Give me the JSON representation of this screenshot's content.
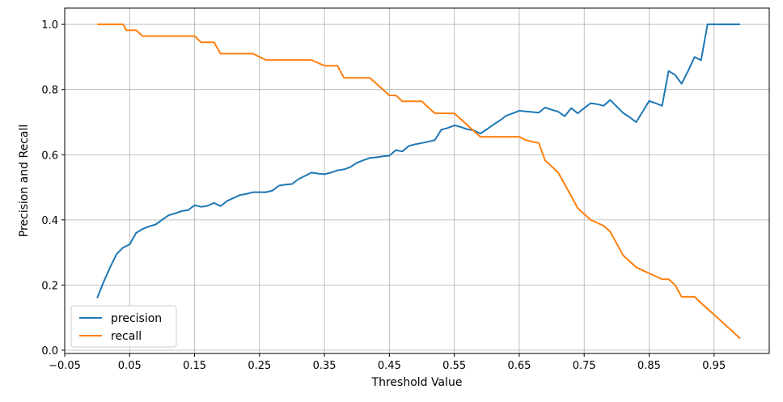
{
  "chart_data": {
    "type": "line",
    "title": "",
    "xlabel": "Threshold Value",
    "ylabel": "Precision and Recall",
    "xlim": [
      -0.05,
      1.035
    ],
    "ylim": [
      -0.01,
      1.05
    ],
    "xticks": [
      -0.05,
      0.05,
      0.15,
      0.25,
      0.35,
      0.45,
      0.55,
      0.65,
      0.75,
      0.85,
      0.95
    ],
    "xtick_labels": [
      "−0.05",
      "0.05",
      "0.15",
      "0.25",
      "0.35",
      "0.45",
      "0.55",
      "0.65",
      "0.75",
      "0.85",
      "0.95"
    ],
    "yticks": [
      0.0,
      0.2,
      0.4,
      0.6,
      0.8,
      1.0
    ],
    "ytick_labels": [
      "0.0",
      "0.2",
      "0.4",
      "0.6",
      "0.8",
      "1.0"
    ],
    "grid": true,
    "legend_position": "lower-left",
    "series": [
      {
        "name": "precision",
        "color": "#1f77b4",
        "points": [
          [
            0.0,
            0.16
          ],
          [
            0.01,
            0.21
          ],
          [
            0.02,
            0.255
          ],
          [
            0.03,
            0.295
          ],
          [
            0.04,
            0.315
          ],
          [
            0.05,
            0.325
          ],
          [
            0.06,
            0.36
          ],
          [
            0.07,
            0.372
          ],
          [
            0.08,
            0.38
          ],
          [
            0.09,
            0.386
          ],
          [
            0.1,
            0.4
          ],
          [
            0.11,
            0.414
          ],
          [
            0.12,
            0.42
          ],
          [
            0.13,
            0.427
          ],
          [
            0.14,
            0.43
          ],
          [
            0.15,
            0.445
          ],
          [
            0.16,
            0.44
          ],
          [
            0.17,
            0.443
          ],
          [
            0.18,
            0.452
          ],
          [
            0.19,
            0.442
          ],
          [
            0.2,
            0.458
          ],
          [
            0.21,
            0.467
          ],
          [
            0.22,
            0.476
          ],
          [
            0.23,
            0.48
          ],
          [
            0.24,
            0.485
          ],
          [
            0.25,
            0.485
          ],
          [
            0.26,
            0.485
          ],
          [
            0.27,
            0.49
          ],
          [
            0.28,
            0.505
          ],
          [
            0.29,
            0.508
          ],
          [
            0.3,
            0.51
          ],
          [
            0.31,
            0.525
          ],
          [
            0.32,
            0.535
          ],
          [
            0.33,
            0.545
          ],
          [
            0.34,
            0.542
          ],
          [
            0.35,
            0.54
          ],
          [
            0.36,
            0.545
          ],
          [
            0.37,
            0.552
          ],
          [
            0.38,
            0.555
          ],
          [
            0.39,
            0.562
          ],
          [
            0.4,
            0.575
          ],
          [
            0.41,
            0.583
          ],
          [
            0.42,
            0.59
          ],
          [
            0.43,
            0.592
          ],
          [
            0.44,
            0.595
          ],
          [
            0.45,
            0.597
          ],
          [
            0.46,
            0.614
          ],
          [
            0.47,
            0.61
          ],
          [
            0.48,
            0.627
          ],
          [
            0.49,
            0.632
          ],
          [
            0.5,
            0.636
          ],
          [
            0.51,
            0.64
          ],
          [
            0.52,
            0.645
          ],
          [
            0.53,
            0.677
          ],
          [
            0.54,
            0.682
          ],
          [
            0.55,
            0.69
          ],
          [
            0.56,
            0.685
          ],
          [
            0.57,
            0.678
          ],
          [
            0.58,
            0.675
          ],
          [
            0.59,
            0.665
          ],
          [
            0.6,
            0.678
          ],
          [
            0.61,
            0.692
          ],
          [
            0.62,
            0.705
          ],
          [
            0.63,
            0.72
          ],
          [
            0.64,
            0.727
          ],
          [
            0.65,
            0.735
          ],
          [
            0.66,
            0.733
          ],
          [
            0.67,
            0.731
          ],
          [
            0.68,
            0.729
          ],
          [
            0.69,
            0.745
          ],
          [
            0.7,
            0.738
          ],
          [
            0.71,
            0.732
          ],
          [
            0.72,
            0.718
          ],
          [
            0.73,
            0.743
          ],
          [
            0.74,
            0.727
          ],
          [
            0.75,
            0.743
          ],
          [
            0.76,
            0.758
          ],
          [
            0.77,
            0.755
          ],
          [
            0.78,
            0.75
          ],
          [
            0.79,
            0.768
          ],
          [
            0.8,
            0.748
          ],
          [
            0.81,
            0.728
          ],
          [
            0.82,
            0.715
          ],
          [
            0.83,
            0.7
          ],
          [
            0.84,
            0.732
          ],
          [
            0.85,
            0.765
          ],
          [
            0.86,
            0.758
          ],
          [
            0.87,
            0.75
          ],
          [
            0.88,
            0.857
          ],
          [
            0.89,
            0.845
          ],
          [
            0.9,
            0.818
          ],
          [
            0.91,
            0.857
          ],
          [
            0.92,
            0.9
          ],
          [
            0.93,
            0.89
          ],
          [
            0.94,
            1.0
          ],
          [
            0.95,
            1.0
          ],
          [
            0.96,
            1.0
          ],
          [
            0.97,
            1.0
          ],
          [
            0.98,
            1.0
          ],
          [
            0.99,
            1.0
          ]
        ]
      },
      {
        "name": "recall",
        "color": "#ff7f0e",
        "points": [
          [
            0.0,
            1.0
          ],
          [
            0.01,
            1.0
          ],
          [
            0.02,
            1.0
          ],
          [
            0.03,
            1.0
          ],
          [
            0.04,
            1.0
          ],
          [
            0.045,
            0.982
          ],
          [
            0.06,
            0.982
          ],
          [
            0.07,
            0.964
          ],
          [
            0.08,
            0.964
          ],
          [
            0.09,
            0.964
          ],
          [
            0.1,
            0.964
          ],
          [
            0.11,
            0.964
          ],
          [
            0.12,
            0.964
          ],
          [
            0.13,
            0.964
          ],
          [
            0.14,
            0.964
          ],
          [
            0.15,
            0.964
          ],
          [
            0.16,
            0.945
          ],
          [
            0.17,
            0.945
          ],
          [
            0.18,
            0.945
          ],
          [
            0.19,
            0.91
          ],
          [
            0.2,
            0.91
          ],
          [
            0.21,
            0.91
          ],
          [
            0.22,
            0.91
          ],
          [
            0.23,
            0.91
          ],
          [
            0.24,
            0.91
          ],
          [
            0.25,
            0.9
          ],
          [
            0.26,
            0.891
          ],
          [
            0.27,
            0.891
          ],
          [
            0.28,
            0.891
          ],
          [
            0.29,
            0.891
          ],
          [
            0.3,
            0.891
          ],
          [
            0.31,
            0.891
          ],
          [
            0.32,
            0.891
          ],
          [
            0.33,
            0.891
          ],
          [
            0.34,
            0.882
          ],
          [
            0.35,
            0.873
          ],
          [
            0.36,
            0.873
          ],
          [
            0.37,
            0.873
          ],
          [
            0.38,
            0.836
          ],
          [
            0.39,
            0.836
          ],
          [
            0.4,
            0.836
          ],
          [
            0.41,
            0.836
          ],
          [
            0.42,
            0.836
          ],
          [
            0.43,
            0.818
          ],
          [
            0.44,
            0.8
          ],
          [
            0.45,
            0.782
          ],
          [
            0.46,
            0.782
          ],
          [
            0.47,
            0.764
          ],
          [
            0.48,
            0.764
          ],
          [
            0.49,
            0.764
          ],
          [
            0.5,
            0.764
          ],
          [
            0.51,
            0.745
          ],
          [
            0.52,
            0.727
          ],
          [
            0.53,
            0.727
          ],
          [
            0.54,
            0.727
          ],
          [
            0.55,
            0.727
          ],
          [
            0.56,
            0.709
          ],
          [
            0.57,
            0.691
          ],
          [
            0.58,
            0.673
          ],
          [
            0.59,
            0.655
          ],
          [
            0.6,
            0.655
          ],
          [
            0.61,
            0.655
          ],
          [
            0.62,
            0.655
          ],
          [
            0.63,
            0.655
          ],
          [
            0.64,
            0.655
          ],
          [
            0.65,
            0.655
          ],
          [
            0.66,
            0.645
          ],
          [
            0.67,
            0.64
          ],
          [
            0.68,
            0.636
          ],
          [
            0.69,
            0.582
          ],
          [
            0.7,
            0.564
          ],
          [
            0.71,
            0.545
          ],
          [
            0.72,
            0.509
          ],
          [
            0.73,
            0.473
          ],
          [
            0.74,
            0.436
          ],
          [
            0.75,
            0.418
          ],
          [
            0.76,
            0.4
          ],
          [
            0.77,
            0.391
          ],
          [
            0.78,
            0.382
          ],
          [
            0.79,
            0.364
          ],
          [
            0.8,
            0.327
          ],
          [
            0.81,
            0.291
          ],
          [
            0.82,
            0.273
          ],
          [
            0.83,
            0.255
          ],
          [
            0.84,
            0.245
          ],
          [
            0.85,
            0.236
          ],
          [
            0.86,
            0.227
          ],
          [
            0.87,
            0.218
          ],
          [
            0.88,
            0.218
          ],
          [
            0.89,
            0.2
          ],
          [
            0.9,
            0.164
          ],
          [
            0.91,
            0.164
          ],
          [
            0.92,
            0.164
          ],
          [
            0.93,
            0.145
          ],
          [
            0.94,
            0.127
          ],
          [
            0.95,
            0.109
          ],
          [
            0.96,
            0.091
          ],
          [
            0.97,
            0.073
          ],
          [
            0.98,
            0.055
          ],
          [
            0.99,
            0.036
          ]
        ]
      }
    ]
  }
}
